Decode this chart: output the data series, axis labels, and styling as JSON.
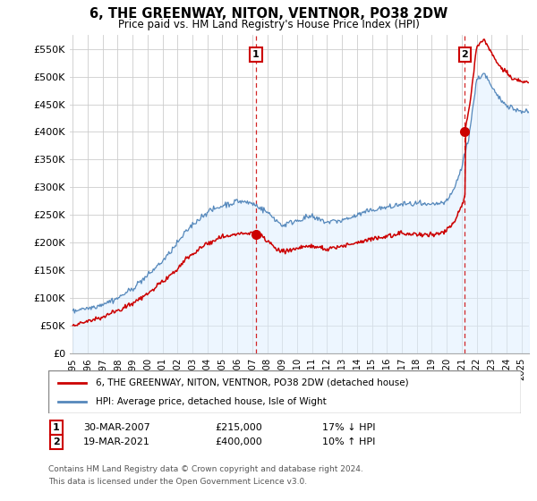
{
  "title": "6, THE GREENWAY, NITON, VENTNOR, PO38 2DW",
  "subtitle": "Price paid vs. HM Land Registry's House Price Index (HPI)",
  "legend_line1": "6, THE GREENWAY, NITON, VENTNOR, PO38 2DW (detached house)",
  "legend_line2": "HPI: Average price, detached house, Isle of Wight",
  "footnote1": "Contains HM Land Registry data © Crown copyright and database right 2024.",
  "footnote2": "This data is licensed under the Open Government Licence v3.0.",
  "marker1_date": "30-MAR-2007",
  "marker1_price": "£215,000",
  "marker1_hpi": "17% ↓ HPI",
  "marker1_x": 2007.24,
  "marker1_y": 215000,
  "marker2_date": "19-MAR-2021",
  "marker2_price": "£400,000",
  "marker2_hpi": "10% ↑ HPI",
  "marker2_x": 2021.22,
  "marker2_y": 400000,
  "ylim_max": 575000,
  "xlim_start": 1994.8,
  "xlim_end": 2025.5,
  "yticks": [
    0,
    50000,
    100000,
    150000,
    200000,
    250000,
    300000,
    350000,
    400000,
    450000,
    500000,
    550000
  ],
  "ytick_labels": [
    "£0",
    "£50K",
    "£100K",
    "£150K",
    "£200K",
    "£250K",
    "£300K",
    "£350K",
    "£400K",
    "£450K",
    "£500K",
    "£550K"
  ],
  "red_color": "#cc0000",
  "blue_color": "#5588bb",
  "blue_fill": "#ddeeff",
  "bg_color": "#ffffff",
  "grid_color": "#cccccc"
}
